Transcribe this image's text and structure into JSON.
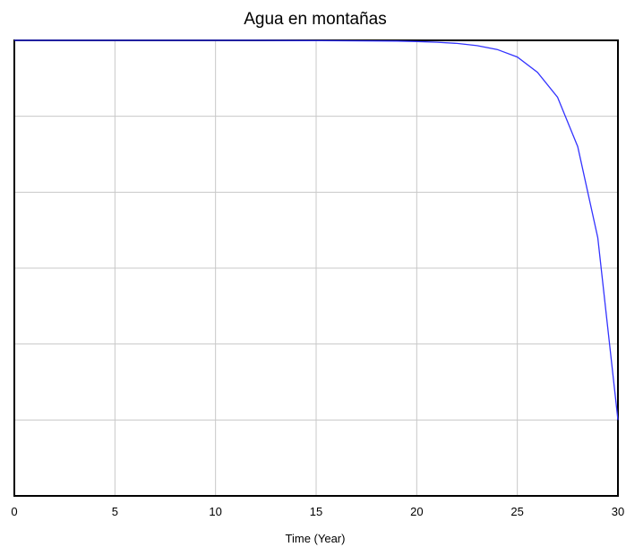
{
  "chart_data": {
    "type": "line",
    "title": "Agua en montañas",
    "xlabel": "Time (Year)",
    "ylabel": "",
    "xlim": [
      0,
      30
    ],
    "x_ticks": [
      "0",
      "5",
      "10",
      "15",
      "20",
      "25",
      "30"
    ],
    "ylim": [
      0,
      6
    ],
    "y_gridlines": 6,
    "grid": true,
    "series": [
      {
        "color": "#3333ff",
        "x": [
          0,
          12,
          19,
          20,
          21,
          22,
          23,
          24,
          25,
          26,
          27,
          28,
          29,
          30
        ],
        "y": [
          6.0,
          6.0,
          5.99,
          5.985,
          5.975,
          5.96,
          5.93,
          5.88,
          5.78,
          5.58,
          5.25,
          4.6,
          3.4,
          1.0
        ]
      }
    ]
  }
}
